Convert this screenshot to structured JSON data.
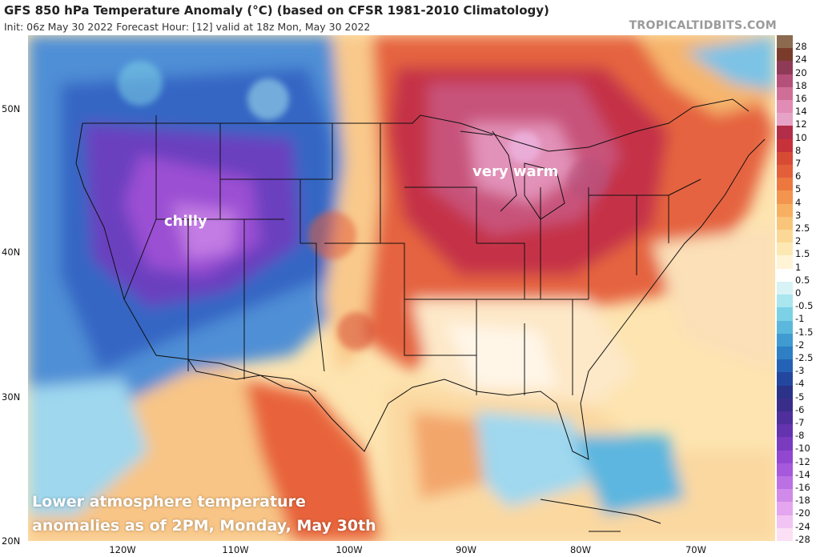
{
  "header": {
    "title": "GFS 850 hPa Temperature Anomaly (°C) (based on CFSR 1981-2010 Climatology)",
    "subtitle": "Init: 06z May 30 2022   Forecast Hour: [12]   valid at 18z Mon, May 30 2022",
    "brand": "TROPICALTIDBITS.COM"
  },
  "axes": {
    "lat_labels": [
      "50N",
      "40N",
      "30N",
      "20N"
    ],
    "lon_labels": [
      "120W",
      "110W",
      "100W",
      "90W",
      "80W",
      "70W"
    ]
  },
  "annotations": {
    "chilly": "chilly",
    "very_warm": "very warm",
    "caption_line1": "Lower atmosphere temperature",
    "caption_line2": "anomalies as of 2PM, Monday, May 30th"
  },
  "colorbar": {
    "labels": [
      "28",
      "24",
      "20",
      "18",
      "16",
      "14",
      "12",
      "10",
      "8",
      "7",
      "6",
      "5",
      "4",
      "3",
      "2.5",
      "2",
      "1.5",
      "1",
      "0.5",
      "0",
      "-0.5",
      "-1",
      "-1.5",
      "-2",
      "-2.5",
      "-3",
      "-4",
      "-5",
      "-6",
      "-7",
      "-8",
      "-10",
      "-12",
      "-14",
      "-16",
      "-18",
      "-20",
      "-24",
      "-28"
    ],
    "colors": [
      "#8b6a4f",
      "#7a3b2b",
      "#8f3a56",
      "#b5507a",
      "#cf6f98",
      "#e08cb5",
      "#e7a3c6",
      "#b22d48",
      "#c7323a",
      "#d74b35",
      "#e35f3a",
      "#ec7840",
      "#f3954e",
      "#f7b061",
      "#f9c57a",
      "#fbd896",
      "#fde8b4",
      "#fff4d6",
      "#ffffff",
      "#d8f3f5",
      "#a9e6ee",
      "#7dd1e6",
      "#5bb8dc",
      "#3f9bd0",
      "#2e7fc4",
      "#2562b5",
      "#23479e",
      "#2a3388",
      "#3a2d8a",
      "#4e2f9b",
      "#6433ae",
      "#7a3bbf",
      "#9147cf",
      "#a659db",
      "#bb70e3",
      "#d08ae9",
      "#e4a6ee",
      "#f1c4f3",
      "#fbe0f5"
    ]
  }
}
